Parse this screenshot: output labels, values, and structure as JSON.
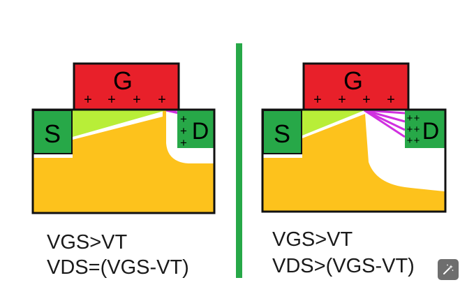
{
  "left_panel": {
    "gate_label": "G",
    "source_label": "S",
    "drain_label": "D",
    "gate_charge": "+",
    "drain_charge": "+",
    "caption_line1": "VGS>VT",
    "caption_line2": "VDS=(VGS-VT)"
  },
  "right_panel": {
    "gate_label": "G",
    "source_label": "S",
    "drain_label": "D",
    "gate_charge": "+",
    "drain_charge": "+",
    "caption_line1": "VGS>VT",
    "caption_line2": "VDS>(VGS-VT)"
  },
  "colors": {
    "gate": "#e8202a",
    "contact": "#27a848",
    "substrate": "#fdc21c",
    "channel": "#b8ee38",
    "field_lines": "#d030e0",
    "divider": "#27a848",
    "outline": "#111111"
  },
  "toolbar": {
    "wand_icon": "magic-wand-icon"
  }
}
